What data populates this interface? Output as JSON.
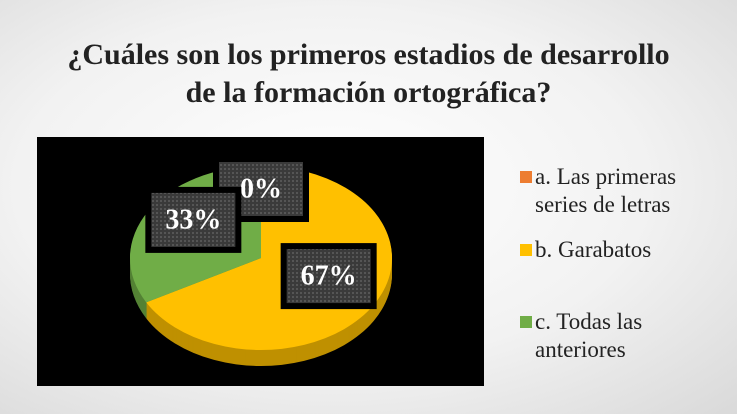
{
  "chart_data": {
    "type": "pie",
    "title": "¿Cuáles son los primeros estadios de desarrollo de la formación ortográfica?",
    "categories": [
      "a. Las primeras series de letras",
      "b. Garabatos",
      "c. Todas las anteriores"
    ],
    "values": [
      0,
      67,
      33
    ],
    "value_labels": [
      "0%",
      "67%",
      "33%"
    ],
    "colors": [
      "#ED7D31",
      "#FFC000",
      "#70AD47"
    ],
    "legend": "right"
  }
}
